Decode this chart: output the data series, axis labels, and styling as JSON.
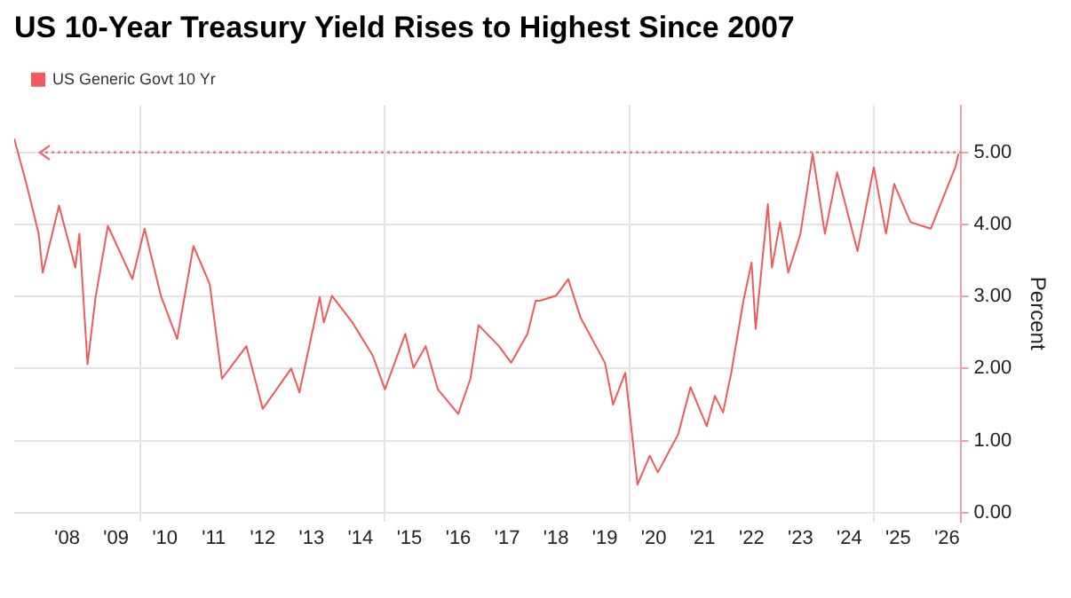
{
  "chart_data": {
    "type": "line",
    "title": "US 10-Year Treasury Yield Rises to Highest Since 2007",
    "ylabel": "Percent",
    "x": [
      "2007-06",
      "2007-09",
      "2007-12",
      "2008-01",
      "2008-05",
      "2008-09",
      "2008-10",
      "2008-12",
      "2009-02",
      "2009-05",
      "2009-11",
      "2010-02",
      "2010-06",
      "2010-10",
      "2011-02",
      "2011-06",
      "2011-09",
      "2012-03",
      "2012-07",
      "2013-02",
      "2013-04",
      "2013-09",
      "2013-10",
      "2013-12",
      "2014-05",
      "2014-10",
      "2015-01",
      "2015-06",
      "2015-08",
      "2015-11",
      "2016-02",
      "2016-07",
      "2016-10",
      "2016-12",
      "2017-05",
      "2017-08",
      "2017-12",
      "2018-02",
      "2018-03",
      "2018-07",
      "2018-10",
      "2019-01",
      "2019-07",
      "2019-09",
      "2019-12",
      "2020-03",
      "2020-06",
      "2020-08",
      "2021-01",
      "2021-04",
      "2021-08",
      "2021-10",
      "2021-12",
      "2022-02",
      "2022-05",
      "2022-07",
      "2022-08",
      "2022-11",
      "2022-12",
      "2023-02",
      "2023-04",
      "2023-07",
      "2023-10",
      "2024-01",
      "2024-04",
      "2024-09",
      "2025-01",
      "2025-04",
      "2025-06",
      "2025-10",
      "2026-03",
      "2026-09-01",
      "2026-09-25"
    ],
    "series": [
      {
        "name": "US Generic Govt 10 Yr",
        "color": "#f05a5a",
        "values": [
          5.19,
          4.56,
          3.87,
          3.33,
          4.26,
          3.4,
          3.87,
          2.06,
          3.0,
          3.98,
          3.24,
          3.94,
          3.01,
          2.41,
          3.7,
          3.17,
          1.86,
          2.31,
          1.44,
          2.0,
          1.67,
          2.99,
          2.64,
          3.01,
          2.64,
          2.18,
          1.71,
          2.48,
          2.01,
          2.31,
          1.71,
          1.37,
          1.86,
          2.6,
          2.31,
          2.08,
          2.48,
          2.94,
          2.94,
          3.01,
          3.24,
          2.71,
          2.08,
          1.5,
          1.94,
          0.39,
          0.79,
          0.56,
          1.09,
          1.74,
          1.2,
          1.62,
          1.39,
          1.94,
          2.94,
          3.47,
          2.55,
          4.28,
          3.4,
          4.03,
          3.33,
          3.87,
          4.98,
          3.87,
          4.72,
          3.63,
          4.79,
          3.87,
          4.56,
          4.03,
          3.94,
          4.79,
          4.98
        ]
      }
    ],
    "xlim": [
      "2007-06",
      "2026-10-15"
    ],
    "xticks": [
      {
        "value": "2008-07",
        "label": "'08"
      },
      {
        "value": "2009-07",
        "label": "'09"
      },
      {
        "value": "2010",
        "label": null
      },
      {
        "value": "2010-07",
        "label": "'10"
      },
      {
        "value": "2011-07",
        "label": "'11"
      },
      {
        "value": "2012-07",
        "label": "'12"
      },
      {
        "value": "2013-07",
        "label": "'13"
      },
      {
        "value": "2014-07",
        "label": "'14"
      },
      {
        "value": "2015",
        "label": null
      },
      {
        "value": "2015-07",
        "label": "'15"
      },
      {
        "value": "2016-07",
        "label": "'16"
      },
      {
        "value": "2017-07",
        "label": "'17"
      },
      {
        "value": "2018-07",
        "label": "'18"
      },
      {
        "value": "2019-07",
        "label": "'19"
      },
      {
        "value": "2020",
        "label": null
      },
      {
        "value": "2020-07",
        "label": "'20"
      },
      {
        "value": "2021-07",
        "label": "'21"
      },
      {
        "value": "2022-07",
        "label": "'22"
      },
      {
        "value": "2023-07",
        "label": "'23"
      },
      {
        "value": "2024-07",
        "label": "'24"
      },
      {
        "value": "2025",
        "label": null
      },
      {
        "value": "2025-07",
        "label": "'25"
      },
      {
        "value": "2026-07",
        "label": "'26"
      }
    ],
    "ylim": [
      -0.12,
      5.65
    ],
    "yticks": [
      {
        "value": 0,
        "label": "0.00"
      },
      {
        "value": 1,
        "label": "1.00"
      },
      {
        "value": 2,
        "label": "2.00"
      },
      {
        "value": 3,
        "label": "3.00"
      },
      {
        "value": 4,
        "label": "4.00"
      },
      {
        "value": 5,
        "label": "5.00"
      }
    ],
    "ref_lines": [
      {
        "axis": "y",
        "value": 5.0,
        "color": "#e8707a",
        "line_style": "dotted"
      }
    ],
    "grid": true,
    "legend": "top left",
    "marker": "none",
    "line_style": "solid"
  }
}
